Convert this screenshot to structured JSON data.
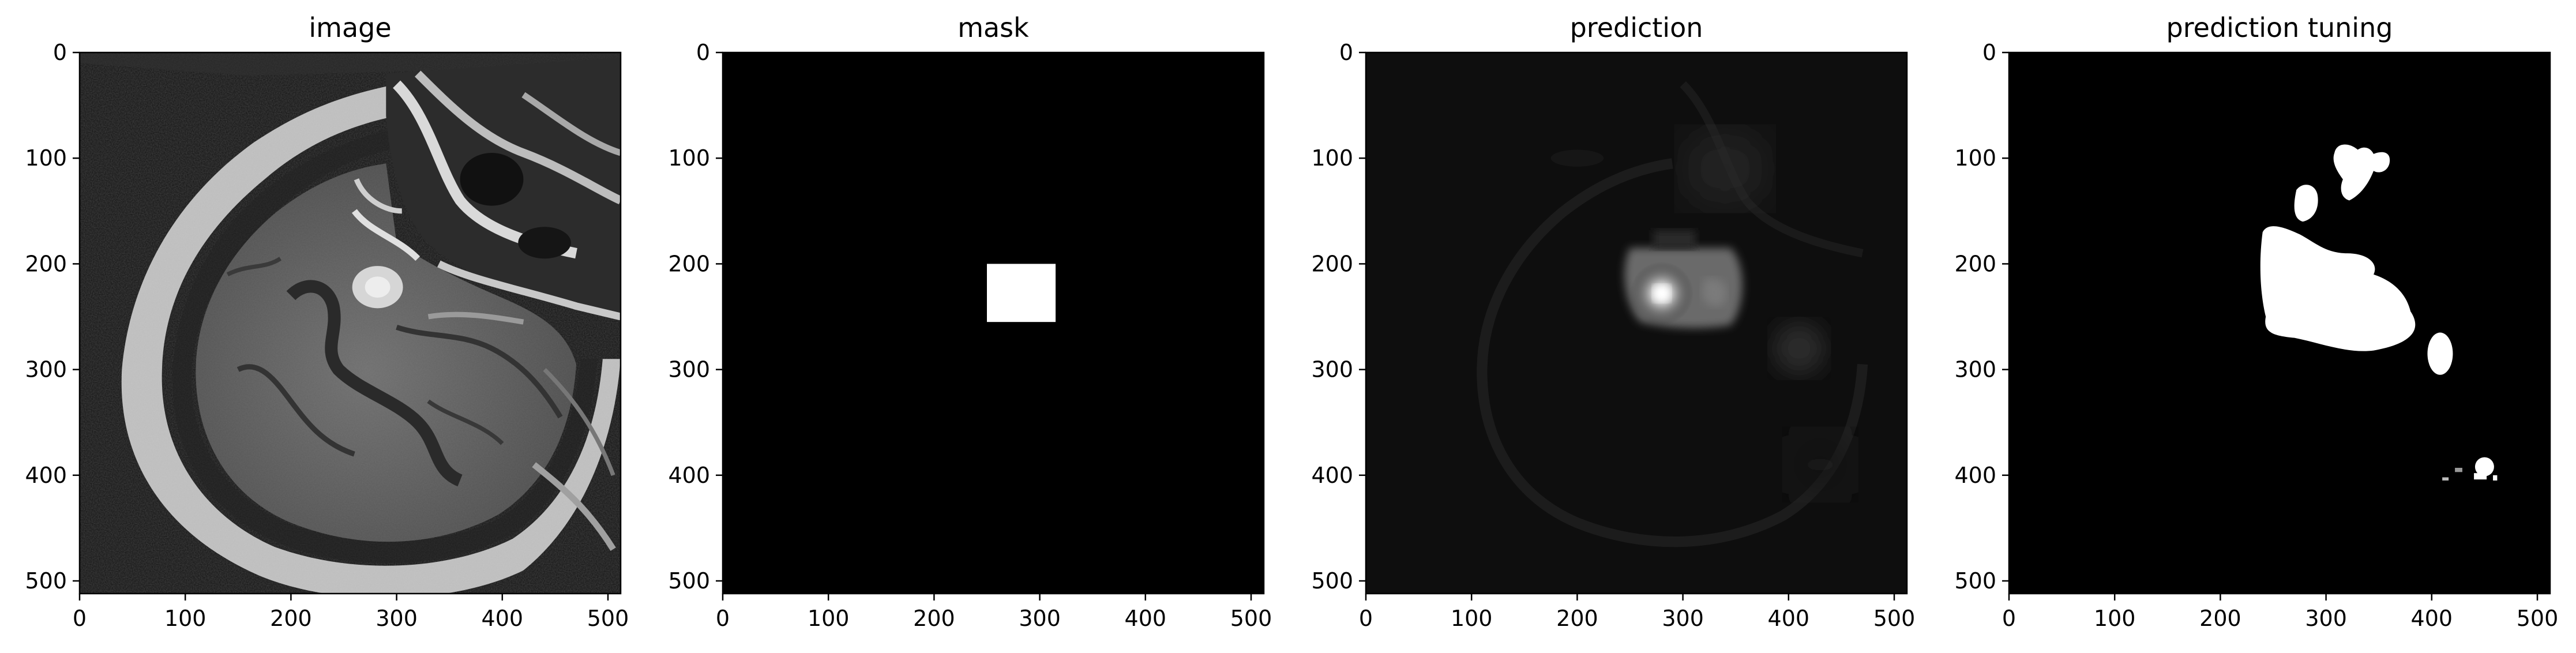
{
  "chart_data": [
    {
      "type": "heatmap",
      "title": "image",
      "xlabel": "",
      "ylabel": "",
      "xlim": [
        0,
        512
      ],
      "ylim": [
        512,
        0
      ],
      "xticks": [
        0,
        100,
        200,
        300,
        400,
        500
      ],
      "yticks": [
        0,
        100,
        200,
        300,
        400,
        500
      ],
      "content": "grayscale MRI slice, sagittal view of head"
    },
    {
      "type": "heatmap",
      "title": "mask",
      "xlabel": "",
      "ylabel": "",
      "xlim": [
        0,
        512
      ],
      "ylim": [
        512,
        0
      ],
      "xticks": [
        0,
        100,
        200,
        300,
        400,
        500
      ],
      "yticks": [
        0,
        100,
        200,
        300,
        400,
        500
      ],
      "regions": [
        {
          "shape": "rectangle",
          "value": 1,
          "x": [
            250,
            315
          ],
          "y": [
            200,
            255
          ]
        }
      ]
    },
    {
      "type": "heatmap",
      "title": "prediction",
      "xlabel": "",
      "ylabel": "",
      "xlim": [
        0,
        512
      ],
      "ylim": [
        512,
        0
      ],
      "xticks": [
        0,
        100,
        200,
        300,
        400,
        500
      ],
      "yticks": [
        0,
        100,
        200,
        300,
        400,
        500
      ],
      "peak": {
        "x": 280,
        "y": 228,
        "value": 1.0
      }
    },
    {
      "type": "heatmap",
      "title": "prediction tuning",
      "xlabel": "",
      "ylabel": "",
      "xlim": [
        0,
        512
      ],
      "ylim": [
        512,
        0
      ],
      "xticks": [
        0,
        100,
        200,
        300,
        400,
        500
      ],
      "yticks": [
        0,
        100,
        200,
        300,
        400,
        500
      ],
      "regions": [
        {
          "shape": "blob",
          "value": 1,
          "center": [
            290,
            240
          ]
        },
        {
          "shape": "blob",
          "value": 1,
          "center": [
            335,
            110
          ]
        },
        {
          "shape": "blob",
          "value": 1,
          "center": [
            283,
            145
          ]
        },
        {
          "shape": "blob",
          "value": 1,
          "center": [
            408,
            285
          ]
        },
        {
          "shape": "blob",
          "value": 1,
          "center": [
            450,
            392
          ]
        }
      ]
    }
  ]
}
